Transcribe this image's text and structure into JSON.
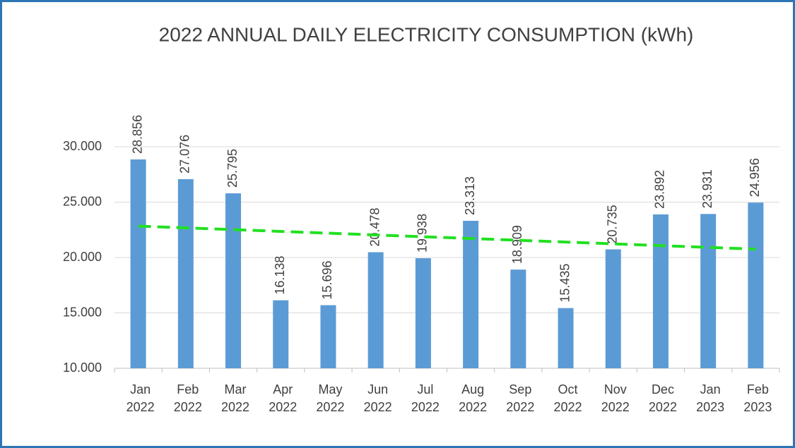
{
  "chart_data": {
    "type": "bar",
    "title": "2022 ANNUAL DAILY ELECTRICITY CONSUMPTION (kWh)",
    "categories": [
      "Jan 2022",
      "Feb 2022",
      "Mar 2022",
      "Apr 2022",
      "May 2022",
      "Jun 2022",
      "Jul 2022",
      "Aug 2022",
      "Sep 2022",
      "Oct 2022",
      "Nov 2022",
      "Dec 2022",
      "Jan 2023",
      "Feb 2023"
    ],
    "values": [
      28.856,
      27.076,
      25.795,
      16.138,
      15.696,
      20.478,
      19.938,
      23.313,
      18.909,
      15.435,
      20.735,
      23.892,
      23.931,
      24.956
    ],
    "color": "#5b9bd5",
    "ylim": [
      10,
      30
    ],
    "yticks": [
      {
        "value": 10,
        "label": "10.000"
      },
      {
        "value": 15,
        "label": "15.000"
      },
      {
        "value": 20,
        "label": "20.000"
      },
      {
        "value": 25,
        "label": "25.000"
      },
      {
        "value": 30,
        "label": "30.000"
      }
    ],
    "grid": true,
    "trendline": "linear",
    "trendline_color": "#22e022"
  }
}
